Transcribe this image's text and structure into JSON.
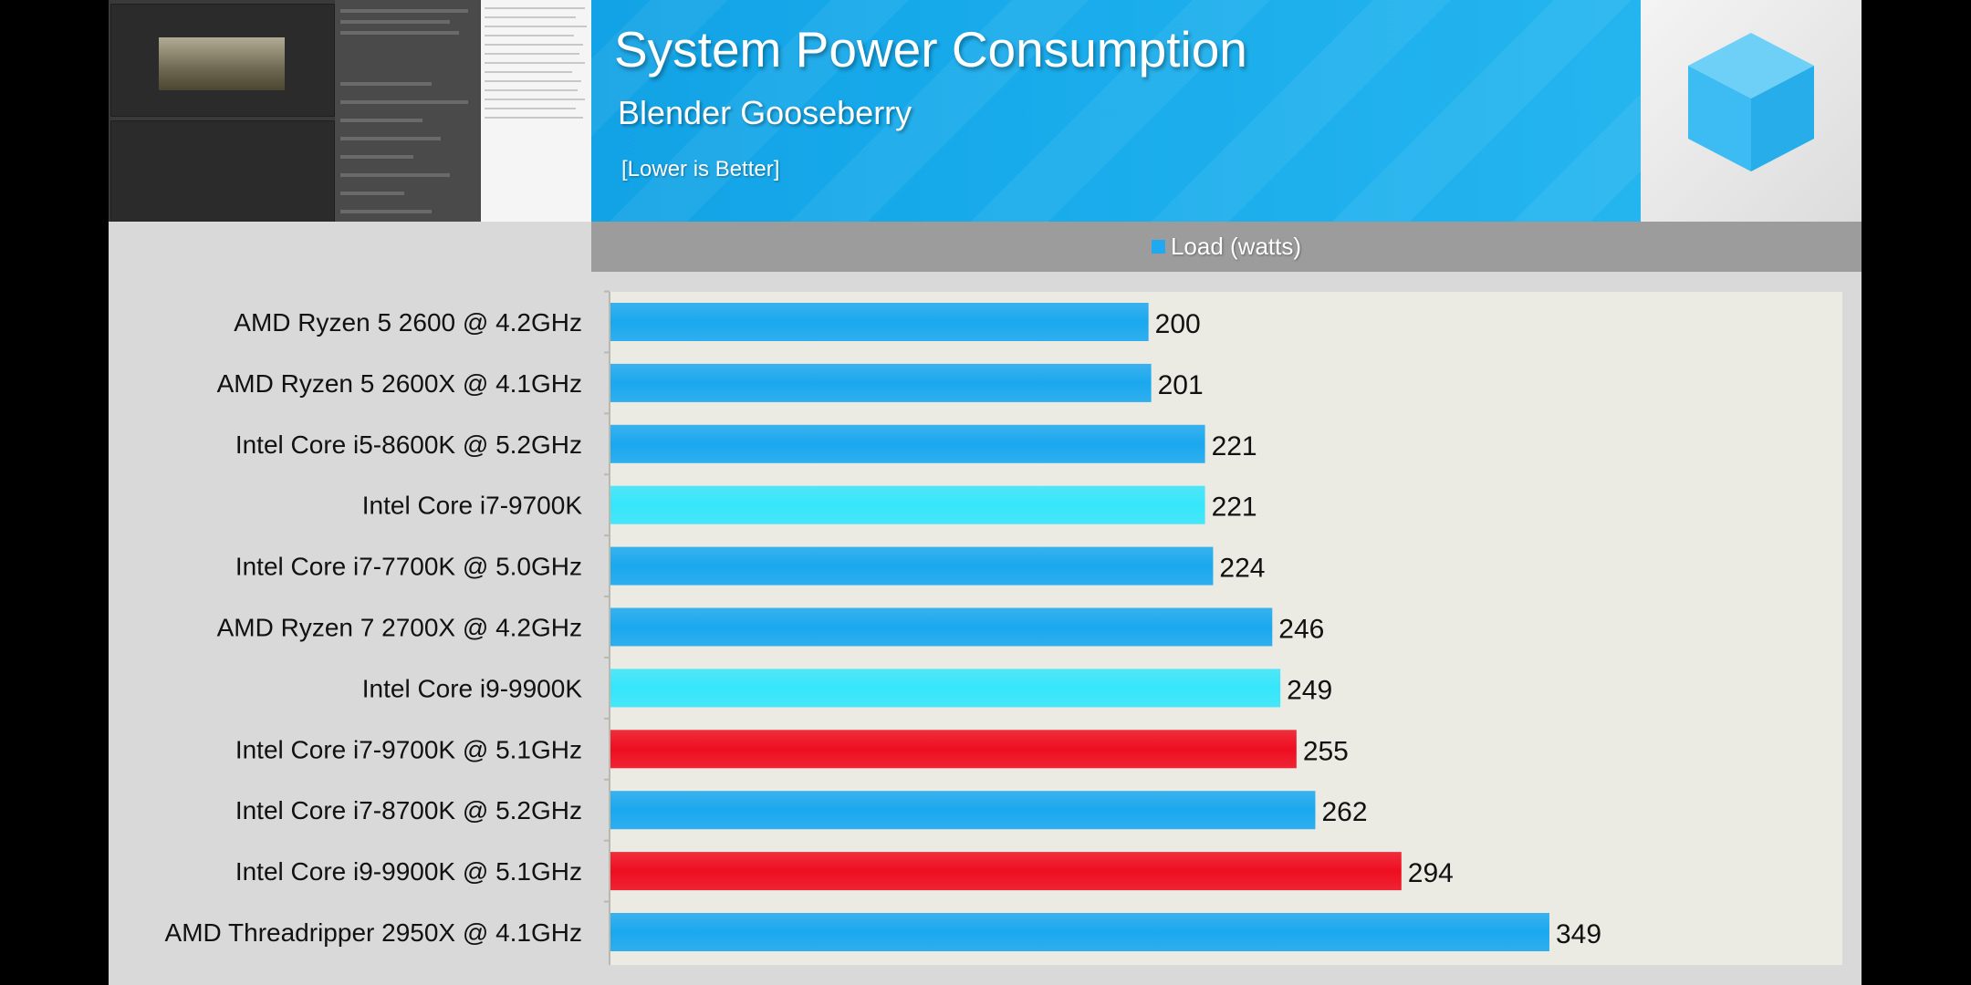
{
  "header": {
    "title": "System Power Consumption",
    "subtitle": "Blender Gooseberry",
    "note": "[Lower is Better]",
    "legend_label": "Load (watts)"
  },
  "colors": {
    "header_blue": "#16a9ea",
    "bar_blue": "#1aa8ef",
    "bar_cyan": "#35e6fb",
    "bar_red": "#ee0e20",
    "plot_bg": "#ebebe3",
    "panel_bg": "#d9d9d9"
  },
  "chart_data": {
    "type": "bar",
    "orientation": "horizontal",
    "title": "System Power Consumption",
    "subtitle": "Blender Gooseberry",
    "categories": [
      "AMD Ryzen 5 2600 @ 4.2GHz",
      "AMD Ryzen 5 2600X @ 4.1GHz",
      "Intel Core i5-8600K @ 5.2GHz",
      "Intel Core i7-9700K",
      "Intel Core i7-7700K @ 5.0GHz",
      "AMD Ryzen 7 2700X @ 4.2GHz",
      "Intel Core i9-9900K",
      "Intel Core i7-9700K @ 5.1GHz",
      "Intel Core i7-8700K @ 5.2GHz",
      "Intel Core i9-9900K @ 5.1GHz",
      "AMD Threadripper 2950X @ 4.1GHz"
    ],
    "series": [
      {
        "name": "Load (watts)",
        "values": [
          200,
          201,
          221,
          221,
          224,
          246,
          249,
          255,
          262,
          294,
          349
        ]
      }
    ],
    "bar_color_keys": [
      "blue",
      "blue",
      "blue",
      "cyan",
      "blue",
      "blue",
      "cyan",
      "red",
      "blue",
      "red",
      "blue"
    ],
    "xlim": [
      0,
      400
    ],
    "grid": false,
    "legend_position": "top-center"
  }
}
